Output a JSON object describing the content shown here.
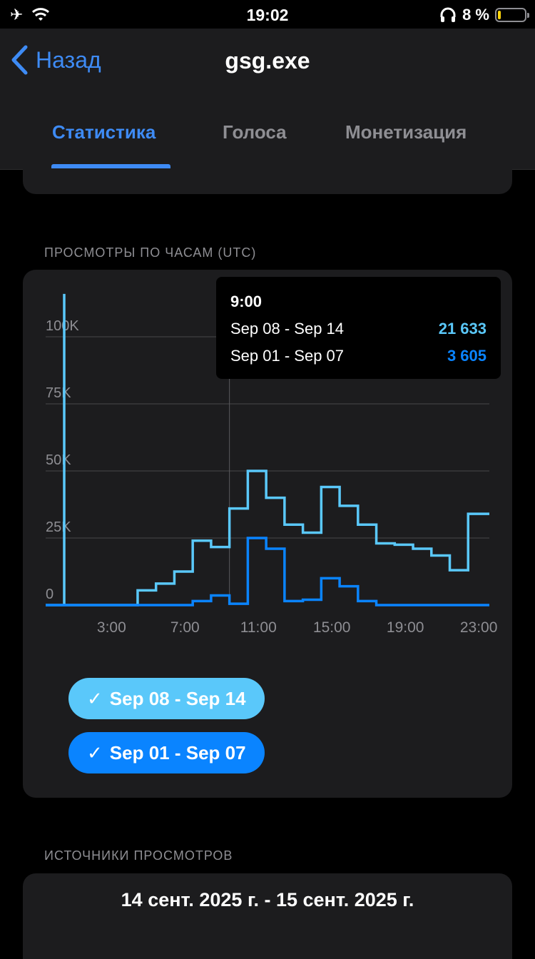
{
  "status": {
    "time": "19:02",
    "battery": "8 %"
  },
  "nav": {
    "back_label": "Назад",
    "title": "gsg.exe"
  },
  "tabs": [
    {
      "label": "Статистика",
      "active": true
    },
    {
      "label": "Голоса",
      "active": false
    },
    {
      "label": "Монетизация",
      "active": false
    }
  ],
  "hourly": {
    "section_label": "ПРОСМОТРЫ ПО ЧАСАМ (UTC)",
    "tooltip": {
      "time": "9:00",
      "rows": [
        {
          "label": "Sep 08 - Sep 14",
          "value": "21 633"
        },
        {
          "label": "Sep 01 - Sep 07",
          "value": "3 605"
        }
      ]
    },
    "chips": [
      {
        "label": "Sep 08 - Sep 14",
        "color": "#5ac8fa"
      },
      {
        "label": "Sep 01 - Sep 07",
        "color": "#0a84ff"
      }
    ]
  },
  "sources": {
    "section_label": "ИСТОЧНИКИ ПРОСМОТРОВ",
    "range": "14 сент. 2025 г. - 15 сент. 2025 г."
  },
  "chart_data": {
    "type": "line",
    "x": [
      0,
      1,
      2,
      3,
      4,
      5,
      6,
      7,
      8,
      9,
      10,
      11,
      12,
      13,
      14,
      15,
      16,
      17,
      18,
      19,
      20,
      21,
      22,
      23
    ],
    "x_tick_labels": [
      "3:00",
      "7:00",
      "11:00",
      "15:00",
      "19:00",
      "23:00"
    ],
    "y_tick_labels": [
      "0",
      "25K",
      "50K",
      "75K",
      "100K"
    ],
    "ylim": [
      0,
      116000
    ],
    "series": [
      {
        "name": "Sep 08 - Sep 14",
        "color": "#5ac8fa",
        "values": [
          116000,
          0,
          0,
          0,
          0,
          5500,
          8000,
          12500,
          24000,
          21633,
          36000,
          50000,
          40000,
          30000,
          27000,
          44000,
          37000,
          30000,
          23000,
          22500,
          21000,
          18500,
          13000,
          34000
        ]
      },
      {
        "name": "Sep 01 - Sep 07",
        "color": "#0a84ff",
        "values": [
          0,
          0,
          0,
          0,
          0,
          0,
          0,
          0,
          1500,
          3605,
          500,
          25000,
          21000,
          1500,
          2000,
          10000,
          7000,
          1500,
          0,
          0,
          0,
          0,
          0,
          0
        ]
      }
    ],
    "grid": true
  }
}
